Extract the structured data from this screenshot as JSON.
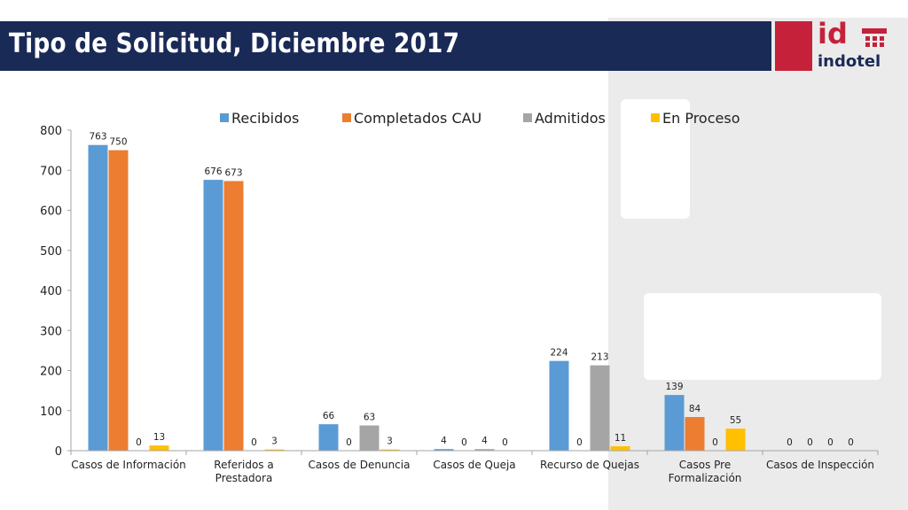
{
  "header": {
    "title": "Tipo de Solicitud, Diciembre 2017",
    "logo_mark": "id",
    "logo_name": "indotel"
  },
  "colors": {
    "title_bar": "#1a2a57",
    "brand_red": "#c5213b",
    "side_panel": "#ebebeb"
  },
  "chart_data": {
    "type": "bar",
    "title": "",
    "xlabel": "",
    "ylabel": "",
    "ylim": [
      0,
      800
    ],
    "yticks": [
      0,
      100,
      200,
      300,
      400,
      500,
      600,
      700,
      800
    ],
    "grid": false,
    "legend_position": "top",
    "categories": [
      [
        "Casos de Información"
      ],
      [
        "Referidos a",
        "Prestadora"
      ],
      [
        "Casos de Denuncia"
      ],
      [
        "Casos de Queja"
      ],
      [
        "Recurso de Quejas"
      ],
      [
        "Casos Pre",
        "Formalización"
      ],
      [
        "Casos de Inspección"
      ]
    ],
    "series": [
      {
        "name": "Recibidos",
        "color": "#5b9bd5",
        "values": [
          763,
          676,
          66,
          4,
          224,
          139,
          0
        ]
      },
      {
        "name": "Completados CAU",
        "color": "#ed7d31",
        "values": [
          750,
          673,
          0,
          0,
          0,
          84,
          0
        ]
      },
      {
        "name": "Admitidos",
        "color": "#a5a5a5",
        "values": [
          0,
          0,
          63,
          4,
          213,
          0,
          0
        ]
      },
      {
        "name": "En Proceso",
        "color": "#ffc000",
        "values": [
          13,
          3,
          3,
          0,
          11,
          55,
          0
        ]
      }
    ]
  }
}
